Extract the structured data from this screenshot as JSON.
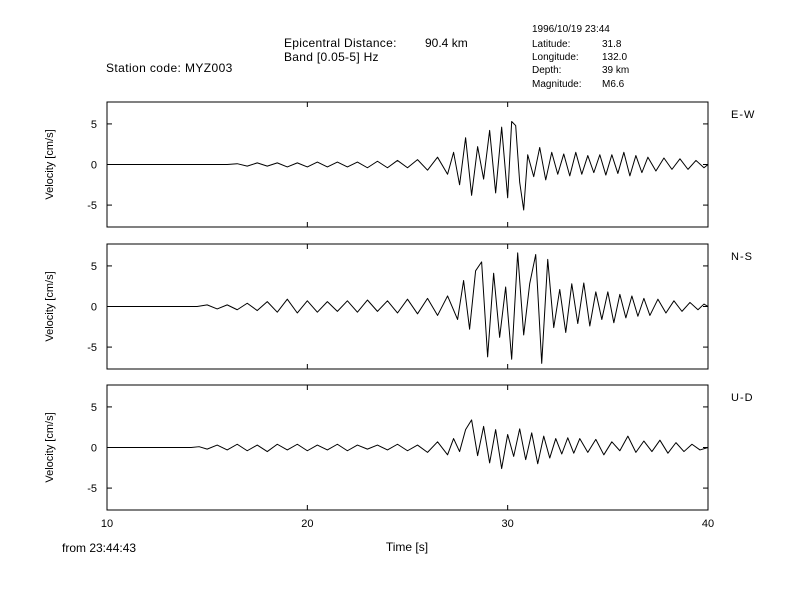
{
  "header": {
    "station_code": "Station code: MYZ003",
    "epicentral_label": "Epicentral Distance:",
    "epicentral_value": "90.4 km",
    "band": "Band [0.05-5] Hz",
    "event": {
      "datetime": "1996/10/19 23:44",
      "rows": [
        {
          "key": "Latitude:",
          "value": "31.8"
        },
        {
          "key": "Longitude:",
          "value": "132.0"
        },
        {
          "key": "Depth:",
          "value": "39 km"
        },
        {
          "key": "Magnitude:",
          "value": "M6.6"
        }
      ]
    }
  },
  "footer": {
    "from": "from 23:44:43"
  },
  "chart_data": {
    "type": "line",
    "xlabel": "Time [s]",
    "xlim": [
      10,
      40
    ],
    "xticks": [
      10,
      20,
      30,
      40
    ],
    "xticklabels": [
      "10",
      "20",
      "30",
      "40"
    ],
    "grid": false,
    "panels": [
      {
        "component": "E-W",
        "ylabel": "Velocity [cm/s]",
        "ylim": [
          -7.7,
          7.7
        ],
        "yticks": [
          5,
          0,
          -5
        ],
        "yticklabels": [
          "5",
          "0",
          "-5"
        ],
        "t": [
          10,
          16,
          16.5,
          17,
          17.5,
          18,
          18.5,
          19,
          19.5,
          20,
          20.5,
          21,
          21.5,
          22,
          22.5,
          23,
          23.5,
          24,
          24.5,
          25,
          25.5,
          26,
          26.5,
          27,
          27.3,
          27.6,
          27.9,
          28.2,
          28.5,
          28.8,
          29.1,
          29.4,
          29.7,
          30,
          30.2,
          30.4,
          30.6,
          30.8,
          31,
          31.3,
          31.6,
          31.9,
          32.2,
          32.5,
          32.8,
          33.1,
          33.4,
          33.7,
          34,
          34.3,
          34.6,
          34.9,
          35.2,
          35.5,
          35.8,
          36.1,
          36.4,
          36.7,
          37,
          37.4,
          37.8,
          38.2,
          38.6,
          39,
          39.4,
          39.8,
          40
        ],
        "v": [
          0,
          0,
          0.1,
          -0.2,
          0.2,
          -0.2,
          0.2,
          -0.3,
          0.2,
          -0.3,
          0.3,
          -0.3,
          0.3,
          -0.3,
          0.3,
          -0.4,
          0.4,
          -0.4,
          0.5,
          -0.4,
          0.6,
          -0.7,
          0.9,
          -1.2,
          1.5,
          -2.5,
          3.3,
          -3.8,
          2.2,
          -1.8,
          4.2,
          -3.5,
          4.6,
          -4.1,
          5.3,
          4.8,
          -2.2,
          -5.6,
          1.2,
          -1.5,
          2.1,
          -1.9,
          1.5,
          -1.2,
          1.3,
          -1.4,
          1.5,
          -1.2,
          1.1,
          -1.0,
          1.2,
          -1.3,
          1.2,
          -1.1,
          1.5,
          -1.4,
          1.1,
          -1.0,
          0.9,
          -0.8,
          0.8,
          -0.6,
          0.7,
          -0.6,
          0.5,
          -0.4,
          0
        ]
      },
      {
        "component": "N-S",
        "ylabel": "Velocity [cm/s]",
        "ylim": [
          -7.7,
          7.7
        ],
        "yticks": [
          5,
          0,
          -5
        ],
        "yticklabels": [
          "5",
          "0",
          "-5"
        ],
        "t": [
          10,
          14.5,
          15,
          15.5,
          16,
          16.5,
          17,
          17.5,
          18,
          18.5,
          19,
          19.5,
          20,
          20.5,
          21,
          21.5,
          22,
          22.5,
          23,
          23.5,
          24,
          24.5,
          25,
          25.5,
          26,
          26.5,
          27,
          27.5,
          27.8,
          28.1,
          28.4,
          28.7,
          29,
          29.3,
          29.6,
          29.9,
          30.2,
          30.5,
          30.8,
          31.1,
          31.4,
          31.7,
          32,
          32.3,
          32.6,
          32.9,
          33.2,
          33.5,
          33.8,
          34.1,
          34.4,
          34.7,
          35,
          35.3,
          35.6,
          35.9,
          36.2,
          36.5,
          36.8,
          37.1,
          37.5,
          37.9,
          38.3,
          38.7,
          39.1,
          39.5,
          39.8,
          40
        ],
        "v": [
          0,
          0,
          0.2,
          -0.3,
          0.2,
          -0.4,
          0.4,
          -0.5,
          0.6,
          -0.7,
          0.9,
          -0.8,
          0.7,
          -0.7,
          0.6,
          -0.6,
          0.7,
          -0.7,
          0.8,
          -0.6,
          0.7,
          -0.8,
          0.9,
          -0.9,
          1.0,
          -1.1,
          1.3,
          -1.6,
          3.2,
          -2.8,
          4.4,
          5.5,
          -6.2,
          4.1,
          -3.8,
          2.4,
          -6.5,
          6.6,
          -3.5,
          2.8,
          6.4,
          -7.0,
          5.8,
          -2.6,
          2.1,
          -3.2,
          2.8,
          -2.1,
          2.9,
          -2.4,
          1.8,
          -1.6,
          1.8,
          -2.0,
          1.5,
          -1.4,
          1.3,
          -1.2,
          1.0,
          -1.1,
          0.9,
          -0.8,
          0.7,
          -0.6,
          0.5,
          -0.4,
          0.3,
          0
        ]
      },
      {
        "component": "U-D",
        "ylabel": "Velocity [cm/s]",
        "ylim": [
          -7.7,
          7.7
        ],
        "yticks": [
          5,
          0,
          -5
        ],
        "yticklabels": [
          "5",
          "0",
          "-5"
        ],
        "t": [
          10,
          14.2,
          14.6,
          15,
          15.5,
          16,
          16.5,
          17,
          17.5,
          18,
          18.5,
          19,
          19.5,
          20,
          20.5,
          21,
          21.5,
          22,
          22.5,
          23,
          23.5,
          24,
          24.5,
          25,
          25.5,
          26,
          26.5,
          27,
          27.3,
          27.6,
          27.9,
          28.2,
          28.5,
          28.8,
          29.1,
          29.4,
          29.7,
          30,
          30.3,
          30.6,
          30.9,
          31.2,
          31.5,
          31.8,
          32.1,
          32.4,
          32.7,
          33,
          33.3,
          33.6,
          34,
          34.4,
          34.8,
          35.2,
          35.6,
          36,
          36.4,
          36.8,
          37.2,
          37.6,
          38,
          38.4,
          38.8,
          39.2,
          39.6,
          40
        ],
        "v": [
          0,
          0,
          0.1,
          -0.2,
          0.3,
          -0.3,
          0.4,
          -0.4,
          0.3,
          -0.5,
          0.4,
          -0.3,
          0.4,
          -0.4,
          0.3,
          -0.3,
          0.4,
          -0.4,
          0.3,
          -0.2,
          0.3,
          -0.3,
          0.4,
          -0.4,
          0.3,
          -0.6,
          0.7,
          -0.9,
          1.1,
          -0.5,
          2.2,
          3.4,
          -1.0,
          2.6,
          -1.9,
          2.2,
          -2.6,
          1.6,
          -1.1,
          2.3,
          -1.5,
          1.8,
          -2.0,
          1.4,
          -1.3,
          1.1,
          -0.8,
          1.2,
          -0.7,
          1.1,
          -0.6,
          1.0,
          -0.9,
          0.7,
          -0.4,
          1.4,
          -0.6,
          0.8,
          -0.5,
          0.9,
          -0.7,
          0.6,
          -0.5,
          0.4,
          -0.3,
          0
        ]
      }
    ]
  }
}
